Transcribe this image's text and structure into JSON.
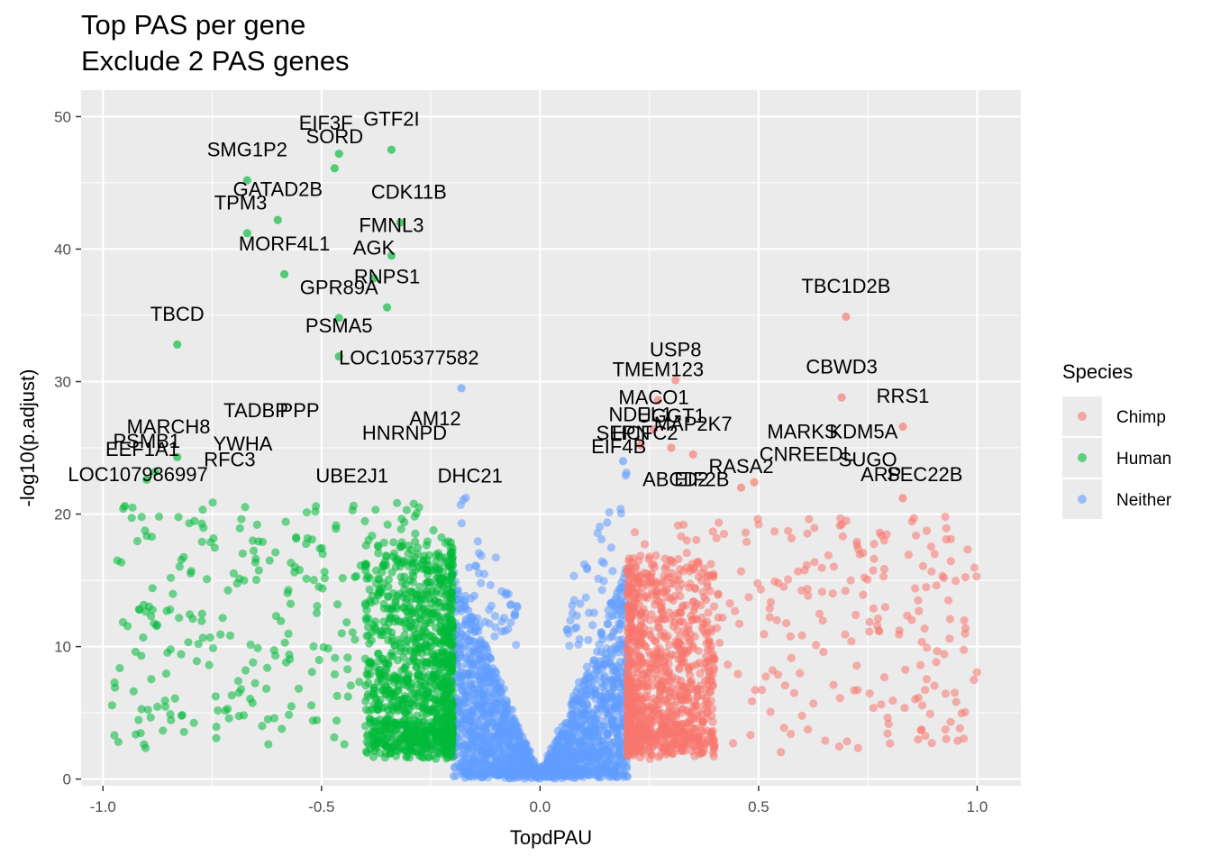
{
  "title": {
    "line1": "Top PAS per gene",
    "line2": "Exclude 2 PAS genes"
  },
  "chart_data": {
    "type": "scatter",
    "xlabel": "TopdPAU",
    "ylabel": "-log10(p.adjust)",
    "xlim": [
      -1.05,
      1.1
    ],
    "ylim": [
      -0.5,
      52
    ],
    "x_ticks": [
      {
        "value": -1.0,
        "label": "-1.0"
      },
      {
        "value": -0.5,
        "label": "-0.5"
      },
      {
        "value": 0.0,
        "label": "0.0"
      },
      {
        "value": 0.5,
        "label": "0.5"
      },
      {
        "value": 1.0,
        "label": "1.0"
      }
    ],
    "y_ticks": [
      {
        "value": 0,
        "label": "0"
      },
      {
        "value": 10,
        "label": "10"
      },
      {
        "value": 20,
        "label": "20"
      },
      {
        "value": 30,
        "label": "30"
      },
      {
        "value": 40,
        "label": "40"
      },
      {
        "value": 50,
        "label": "50"
      }
    ],
    "grid": true,
    "background": "#ebebeb",
    "legend": {
      "title": "Species",
      "placement": "right",
      "entries": [
        {
          "name": "Chimp",
          "color": "#F8766D"
        },
        {
          "name": "Human",
          "color": "#00BA38"
        },
        {
          "name": "Neither",
          "color": "#619CFF"
        }
      ]
    },
    "labeled_points": [
      {
        "label": "GTF2I",
        "x": -0.34,
        "y": 47.5,
        "series": "Human"
      },
      {
        "label": "EIF3F",
        "x": -0.46,
        "y": 47.2,
        "series": "Human"
      },
      {
        "label": "SORD",
        "x": -0.47,
        "y": 46.1,
        "series": "Human"
      },
      {
        "label": "SMG1P2",
        "x": -0.67,
        "y": 45.2,
        "series": "Human"
      },
      {
        "label": "GATAD2B",
        "x": -0.6,
        "y": 42.2,
        "series": "Human"
      },
      {
        "label": "CDK11B",
        "x": -0.32,
        "y": 42.0,
        "series": "Human"
      },
      {
        "label": "TPM3",
        "x": -0.67,
        "y": 41.2,
        "series": "Human"
      },
      {
        "label": "FMNL3",
        "x": -0.34,
        "y": 39.5,
        "series": "Human"
      },
      {
        "label": "MORF4L1",
        "x": -0.585,
        "y": 38.1,
        "series": "Human"
      },
      {
        "label": "AGK",
        "x": -0.38,
        "y": 37.8,
        "series": "Human"
      },
      {
        "label": "RNPS1",
        "x": -0.35,
        "y": 35.6,
        "series": "Human"
      },
      {
        "label": "GPR89A",
        "x": -0.46,
        "y": 34.8,
        "series": "Human"
      },
      {
        "label": "TBCD",
        "x": -0.83,
        "y": 32.8,
        "series": "Human"
      },
      {
        "label": "PSMA5",
        "x": -0.46,
        "y": 31.9,
        "series": "Human"
      },
      {
        "label": "LOC105377582",
        "x": -0.18,
        "y": 29.5,
        "series": "Neither"
      },
      {
        "label": "TBC1D2B",
        "x": 0.7,
        "y": 34.9,
        "series": "Chimp"
      },
      {
        "label": "USP8",
        "x": 0.31,
        "y": 30.1,
        "series": "Chimp"
      },
      {
        "label": "TMEM123",
        "x": 0.27,
        "y": 28.6,
        "series": "Chimp"
      },
      {
        "label": "CBWD3",
        "x": 0.69,
        "y": 28.8,
        "series": "Chimp"
      },
      {
        "label": "RRS1",
        "x": 0.83,
        "y": 26.6,
        "series": "Chimp"
      },
      {
        "label": "MACO1",
        "x": 0.26,
        "y": 26.4,
        "series": "Chimp"
      },
      {
        "label": "NDEL1",
        "x": 0.23,
        "y": 25.2,
        "series": "Chimp"
      },
      {
        "label": "UGGT1",
        "x": 0.3,
        "y": 25.0,
        "series": "Chimp"
      },
      {
        "label": "MARCH8",
        "x": -0.83,
        "y": 24.3,
        "series": "Human"
      },
      {
        "label": "PSMB1",
        "x": -0.88,
        "y": 23.2,
        "series": "Human"
      },
      {
        "label": "EEF1A1",
        "x": -0.9,
        "y": 22.6,
        "series": "Human"
      },
      {
        "label": "LOC107986997",
        "x": -0.95,
        "y": 20.6,
        "series": "Human"
      },
      {
        "label": "MAP2K7",
        "x": 0.35,
        "y": 24.5,
        "series": "Chimp"
      },
      {
        "label": "SEC22B",
        "x": 0.83,
        "y": 21.2,
        "series": "Chimp"
      },
      {
        "label": "EIF4B",
        "x": 0.19,
        "y": 24.0,
        "series": "Neither"
      },
      {
        "label": "ABCD2",
        "x": 0.46,
        "y": 22.0,
        "series": "Chimp"
      },
      {
        "label": "RASA2",
        "x": 0.49,
        "y": 22.4,
        "series": "Chimp"
      }
    ],
    "text_labels": [
      {
        "label": "GTF2I",
        "x": -0.34,
        "y": 49.3
      },
      {
        "label": "EIF3F",
        "x": -0.49,
        "y": 49.0
      },
      {
        "label": "SORD",
        "x": -0.47,
        "y": 48.0
      },
      {
        "label": "SMG1P2",
        "x": -0.67,
        "y": 47.0
      },
      {
        "label": "GATAD2B",
        "x": -0.6,
        "y": 44.0
      },
      {
        "label": "CDK11B",
        "x": -0.3,
        "y": 43.8
      },
      {
        "label": "TPM3",
        "x": -0.685,
        "y": 43.0
      },
      {
        "label": "FMNL3",
        "x": -0.34,
        "y": 41.3
      },
      {
        "label": "MORF4L1",
        "x": -0.585,
        "y": 39.9
      },
      {
        "label": "AGK",
        "x": -0.38,
        "y": 39.6
      },
      {
        "label": "RNPS1",
        "x": -0.35,
        "y": 37.4
      },
      {
        "label": "GPR89A",
        "x": -0.46,
        "y": 36.6
      },
      {
        "label": "TBCD",
        "x": -0.83,
        "y": 34.6
      },
      {
        "label": "PSMA5",
        "x": -0.46,
        "y": 33.7
      },
      {
        "label": "LOC105377582",
        "x": -0.3,
        "y": 31.3
      },
      {
        "label": "TBC1D2B",
        "x": 0.7,
        "y": 36.7
      },
      {
        "label": "USP8",
        "x": 0.31,
        "y": 31.9
      },
      {
        "label": "TMEM123",
        "x": 0.27,
        "y": 30.4
      },
      {
        "label": "CBWD3",
        "x": 0.69,
        "y": 30.6
      },
      {
        "label": "RRS1",
        "x": 0.83,
        "y": 28.4
      },
      {
        "label": "MACO1",
        "x": 0.26,
        "y": 28.3
      },
      {
        "label": "NDEL1",
        "x": 0.23,
        "y": 27.0
      },
      {
        "label": "UGGT1",
        "x": 0.3,
        "y": 26.9
      },
      {
        "label": "MARCH8",
        "x": -0.85,
        "y": 26.1
      },
      {
        "label": "PSMB1",
        "x": -0.9,
        "y": 25.0
      },
      {
        "label": "EEF1A1",
        "x": -0.91,
        "y": 24.4
      },
      {
        "label": "LOC107986997",
        "x": -0.92,
        "y": 22.5
      },
      {
        "label": "MAP2K7",
        "x": 0.35,
        "y": 26.3
      },
      {
        "label": "SEC22B",
        "x": 0.88,
        "y": 22.5
      },
      {
        "label": "EIF4B",
        "x": 0.18,
        "y": 24.6
      },
      {
        "label": "ABCD2",
        "x": 0.31,
        "y": 22.1
      },
      {
        "label": "RASA2",
        "x": 0.46,
        "y": 23.1
      }
    ],
    "crowded_labels": [
      {
        "label": "TADBP",
        "x": -0.65,
        "y": 27.3
      },
      {
        "label": "PPP",
        "x": -0.55,
        "y": 27.3
      },
      {
        "label": "YWHA",
        "x": -0.68,
        "y": 24.8
      },
      {
        "label": "RFC3",
        "x": -0.71,
        "y": 23.6
      },
      {
        "label": "AM12",
        "x": -0.24,
        "y": 26.7
      },
      {
        "label": "HNRNPD",
        "x": -0.31,
        "y": 25.6
      },
      {
        "label": "UBE2J1",
        "x": -0.43,
        "y": 22.4
      },
      {
        "label": "DHC21",
        "x": -0.16,
        "y": 22.4
      },
      {
        "label": "SEPN",
        "x": 0.19,
        "y": 25.6
      },
      {
        "label": "HCFC2",
        "x": 0.24,
        "y": 25.6
      },
      {
        "label": "MARKS",
        "x": 0.6,
        "y": 25.7
      },
      {
        "label": "KDM5A",
        "x": 0.74,
        "y": 25.7
      },
      {
        "label": "CNREEDL",
        "x": 0.61,
        "y": 24.0
      },
      {
        "label": "SUGO",
        "x": 0.75,
        "y": 23.6
      },
      {
        "label": "ARP",
        "x": 0.78,
        "y": 22.5
      },
      {
        "label": "EIF2B",
        "x": 0.37,
        "y": 22.1
      }
    ]
  }
}
